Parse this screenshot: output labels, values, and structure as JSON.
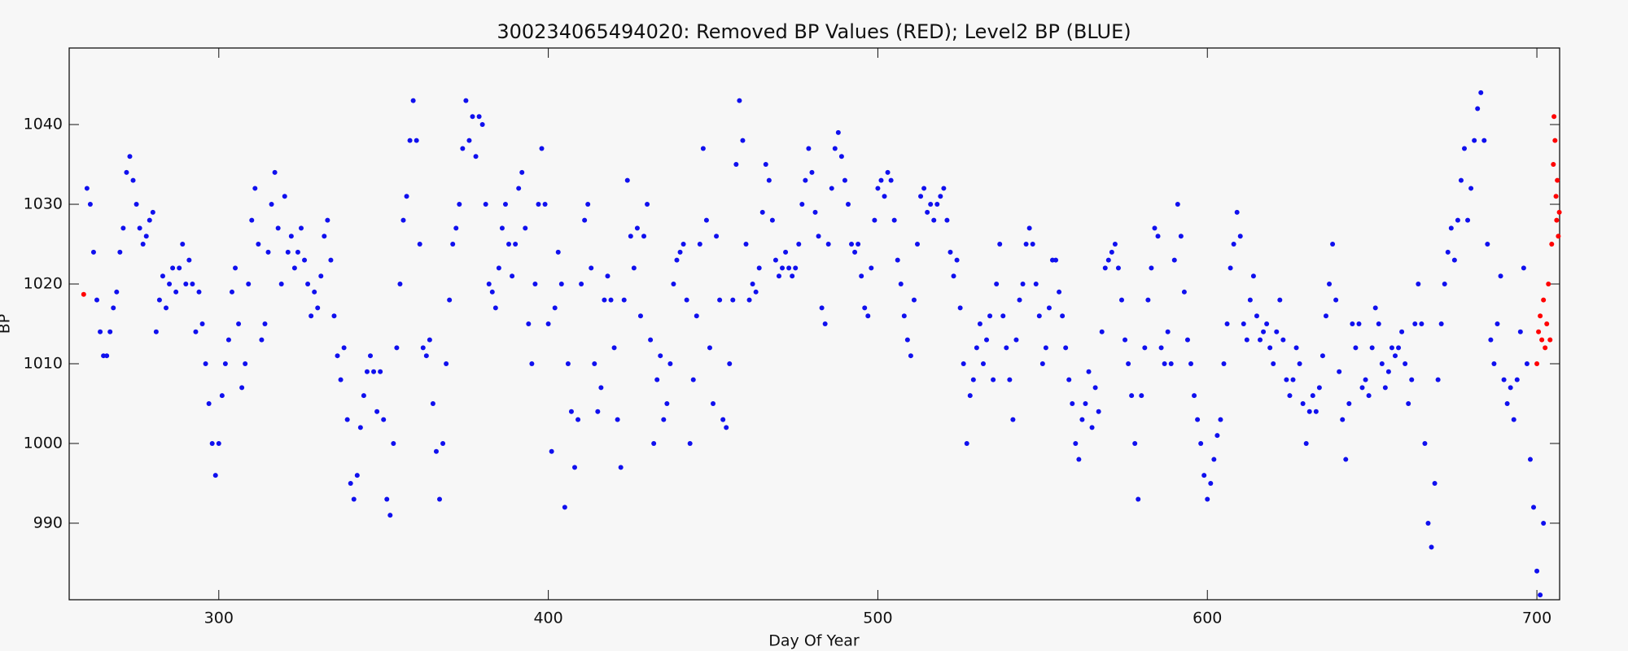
{
  "chart_data": {
    "type": "scatter",
    "title": "300234065494020: Removed BP Values (RED); Level2 BP (BLUE)",
    "x_label": "Day Of Year",
    "y_label": "BP",
    "xlim": [
      254.6,
      706.9
    ],
    "ylim": [
      980.4,
      1049.6
    ],
    "xticks": [
      300,
      400,
      500,
      600,
      700
    ],
    "yticks": [
      990,
      1000,
      1010,
      1020,
      1030,
      1040
    ],
    "series": [
      {
        "color": "#1010ee",
        "x": [
          260,
          261,
          262,
          263,
          264,
          265,
          266,
          267,
          268,
          269,
          270,
          271,
          272,
          273,
          274,
          275,
          276,
          277,
          278,
          279,
          280,
          281,
          282,
          283,
          284,
          285,
          286,
          287,
          288,
          289,
          290,
          291,
          292,
          293,
          294,
          295,
          296,
          297,
          298,
          299,
          300,
          301,
          302,
          303,
          304,
          305,
          306,
          307,
          308,
          309,
          310,
          311,
          312,
          313,
          314,
          315,
          316,
          317,
          318,
          319,
          320,
          321,
          322,
          323,
          324,
          325,
          326,
          327,
          328,
          329,
          330,
          331,
          332,
          333,
          334,
          335,
          336,
          337,
          338,
          339,
          340,
          341,
          342,
          343,
          344,
          345,
          346,
          347,
          348,
          349,
          350,
          351,
          352,
          353,
          354,
          355,
          356,
          357,
          358,
          359,
          360,
          361,
          362,
          363,
          364,
          365,
          366,
          367,
          368,
          369,
          370,
          371,
          372,
          373,
          374,
          375,
          376,
          377,
          378,
          379,
          380,
          381,
          382,
          383,
          384,
          385,
          386,
          387,
          388,
          389,
          390,
          391,
          392,
          393,
          394,
          395,
          396,
          397,
          398,
          399,
          400,
          401,
          402,
          403,
          404,
          405,
          406,
          407,
          408,
          409,
          410,
          411,
          412,
          413,
          414,
          415,
          416,
          417,
          418,
          419,
          420,
          421,
          422,
          423,
          424,
          425,
          426,
          427,
          428,
          429,
          430,
          431,
          432,
          433,
          434,
          435,
          436,
          437,
          438,
          439,
          440,
          441,
          442,
          443,
          444,
          445,
          446,
          447,
          448,
          449,
          450,
          451,
          452,
          453,
          454,
          455,
          456,
          457,
          458,
          459,
          460,
          461,
          462,
          463,
          464,
          465,
          466,
          467,
          468,
          469,
          470,
          471,
          472,
          473,
          474,
          475,
          476,
          477,
          478,
          479,
          480,
          481,
          482,
          483,
          484,
          485,
          486,
          487,
          488,
          489,
          490,
          491,
          492,
          493,
          494,
          495,
          496,
          497,
          498,
          499,
          500,
          501,
          502,
          503,
          504,
          505,
          506,
          507,
          508,
          509,
          510,
          511,
          512,
          513,
          514,
          515,
          516,
          517,
          518,
          519,
          520,
          521,
          522,
          523,
          524,
          525,
          526,
          527,
          528,
          529,
          530,
          531,
          532,
          533,
          534,
          535,
          536,
          537,
          538,
          539,
          540,
          541,
          542,
          543,
          544,
          545,
          546,
          547,
          548,
          549,
          550,
          551,
          552,
          553,
          554,
          555,
          556,
          557,
          558,
          559,
          560,
          561,
          562,
          563,
          564,
          565,
          566,
          567,
          568,
          569,
          570,
          571,
          572,
          573,
          574,
          575,
          576,
          577,
          578,
          579,
          580,
          581,
          582,
          583,
          584,
          585,
          586,
          587,
          588,
          589,
          590,
          591,
          592,
          593,
          594,
          595,
          596,
          597,
          598,
          599,
          600,
          601,
          602,
          603,
          604,
          605,
          606,
          607,
          608,
          609,
          610,
          611,
          612,
          613,
          614,
          615,
          616,
          617,
          618,
          619,
          620,
          621,
          622,
          623,
          624,
          625,
          626,
          627,
          628,
          629,
          630,
          631,
          632,
          633,
          634,
          635,
          636,
          637,
          638,
          639,
          640,
          641,
          642,
          643,
          644,
          645,
          646,
          647,
          648,
          649,
          650,
          651,
          652,
          653,
          654,
          655,
          656,
          657,
          658,
          659,
          660,
          661,
          662,
          663,
          664,
          665,
          666,
          667,
          668,
          669,
          670,
          671,
          672,
          673,
          674,
          675,
          676,
          677,
          678,
          679,
          680,
          681,
          682,
          683,
          684,
          685,
          686,
          687,
          688,
          689,
          690,
          691,
          692,
          693,
          694,
          695,
          696,
          697,
          698,
          699,
          700,
          701,
          702
        ],
        "values": [
          1032,
          1030,
          1024,
          1018,
          1014,
          1011,
          1011,
          1014,
          1017,
          1019,
          1024,
          1027,
          1034,
          1036,
          1033,
          1030,
          1027,
          1025,
          1026,
          1028,
          1029,
          1014,
          1018,
          1021,
          1017,
          1020,
          1022,
          1019,
          1022,
          1025,
          1020,
          1023,
          1020,
          1014,
          1019,
          1015,
          1010,
          1005,
          1000,
          996,
          1000,
          1006,
          1010,
          1013,
          1019,
          1022,
          1015,
          1007,
          1010,
          1020,
          1028,
          1032,
          1025,
          1013,
          1015,
          1024,
          1030,
          1034,
          1027,
          1020,
          1031,
          1024,
          1026,
          1022,
          1024,
          1027,
          1023,
          1020,
          1016,
          1019,
          1017,
          1021,
          1026,
          1028,
          1023,
          1016,
          1011,
          1008,
          1012,
          1003,
          995,
          993,
          996,
          1002,
          1006,
          1009,
          1011,
          1009,
          1004,
          1009,
          1003,
          993,
          991,
          1000,
          1012,
          1020,
          1028,
          1031,
          1038,
          1043,
          1038,
          1025,
          1012,
          1011,
          1013,
          1005,
          999,
          993,
          1000,
          1010,
          1018,
          1025,
          1027,
          1030,
          1037,
          1043,
          1038,
          1041,
          1036,
          1041,
          1040,
          1030,
          1020,
          1019,
          1017,
          1022,
          1027,
          1030,
          1025,
          1021,
          1025,
          1032,
          1034,
          1027,
          1015,
          1010,
          1020,
          1030,
          1037,
          1030,
          1015,
          999,
          1017,
          1024,
          1020,
          992,
          1010,
          1004,
          997,
          1003,
          1020,
          1028,
          1030,
          1022,
          1010,
          1004,
          1007,
          1018,
          1021,
          1018,
          1012,
          1003,
          997,
          1018,
          1033,
          1026,
          1022,
          1027,
          1016,
          1026,
          1030,
          1013,
          1000,
          1008,
          1011,
          1003,
          1005,
          1010,
          1020,
          1023,
          1024,
          1025,
          1018,
          1000,
          1008,
          1016,
          1025,
          1037,
          1028,
          1012,
          1005,
          1026,
          1018,
          1003,
          1002,
          1010,
          1018,
          1035,
          1043,
          1038,
          1025,
          1018,
          1020,
          1019,
          1022,
          1029,
          1035,
          1033,
          1028,
          1023,
          1021,
          1022,
          1024,
          1022,
          1021,
          1022,
          1025,
          1030,
          1033,
          1037,
          1034,
          1029,
          1026,
          1017,
          1015,
          1025,
          1032,
          1037,
          1039,
          1036,
          1033,
          1030,
          1025,
          1024,
          1025,
          1021,
          1017,
          1016,
          1022,
          1028,
          1032,
          1033,
          1031,
          1034,
          1033,
          1028,
          1023,
          1020,
          1016,
          1013,
          1011,
          1018,
          1025,
          1031,
          1032,
          1029,
          1030,
          1028,
          1030,
          1031,
          1032,
          1028,
          1024,
          1021,
          1023,
          1017,
          1010,
          1000,
          1006,
          1008,
          1012,
          1015,
          1010,
          1013,
          1016,
          1008,
          1020,
          1025,
          1016,
          1012,
          1008,
          1003,
          1013,
          1018,
          1020,
          1025,
          1027,
          1025,
          1020,
          1016,
          1010,
          1012,
          1017,
          1023,
          1023,
          1019,
          1016,
          1012,
          1008,
          1005,
          1000,
          998,
          1003,
          1005,
          1009,
          1002,
          1007,
          1004,
          1014,
          1022,
          1023,
          1024,
          1025,
          1022,
          1018,
          1013,
          1010,
          1006,
          1000,
          993,
          1006,
          1012,
          1018,
          1022,
          1027,
          1026,
          1012,
          1010,
          1014,
          1010,
          1023,
          1030,
          1026,
          1019,
          1013,
          1010,
          1006,
          1003,
          1000,
          996,
          993,
          995,
          998,
          1001,
          1003,
          1010,
          1015,
          1022,
          1025,
          1029,
          1026,
          1015,
          1013,
          1018,
          1021,
          1016,
          1013,
          1014,
          1015,
          1012,
          1010,
          1014,
          1018,
          1013,
          1008,
          1006,
          1008,
          1012,
          1010,
          1005,
          1000,
          1004,
          1006,
          1004,
          1007,
          1011,
          1016,
          1020,
          1025,
          1018,
          1009,
          1003,
          998,
          1005,
          1015,
          1012,
          1015,
          1007,
          1008,
          1006,
          1012,
          1017,
          1015,
          1010,
          1007,
          1009,
          1012,
          1011,
          1012,
          1014,
          1010,
          1005,
          1008,
          1015,
          1020,
          1015,
          1000,
          990,
          987,
          995,
          1008,
          1015,
          1020,
          1024,
          1027,
          1023,
          1028,
          1033,
          1037,
          1028,
          1032,
          1038,
          1042,
          1044,
          1038,
          1025,
          1013,
          1010,
          1015,
          1021,
          1008,
          1005,
          1007,
          1003,
          1008,
          1014,
          1022,
          1010,
          998,
          992,
          984,
          981,
          990
        ]
      },
      {
        "color": "#ff0000",
        "x": [
          259,
          700,
          700.5,
          701,
          701.5,
          702,
          702.5,
          703,
          703.5,
          704,
          704.5,
          705,
          705.2,
          705.5,
          705.8,
          706,
          706.2,
          706.5,
          706.8
        ],
        "values": [
          1018.7,
          1010,
          1014,
          1016,
          1013,
          1018,
          1012,
          1015,
          1020,
          1013,
          1025,
          1035,
          1041,
          1038,
          1031,
          1028,
          1033,
          1026,
          1029
        ]
      }
    ]
  }
}
